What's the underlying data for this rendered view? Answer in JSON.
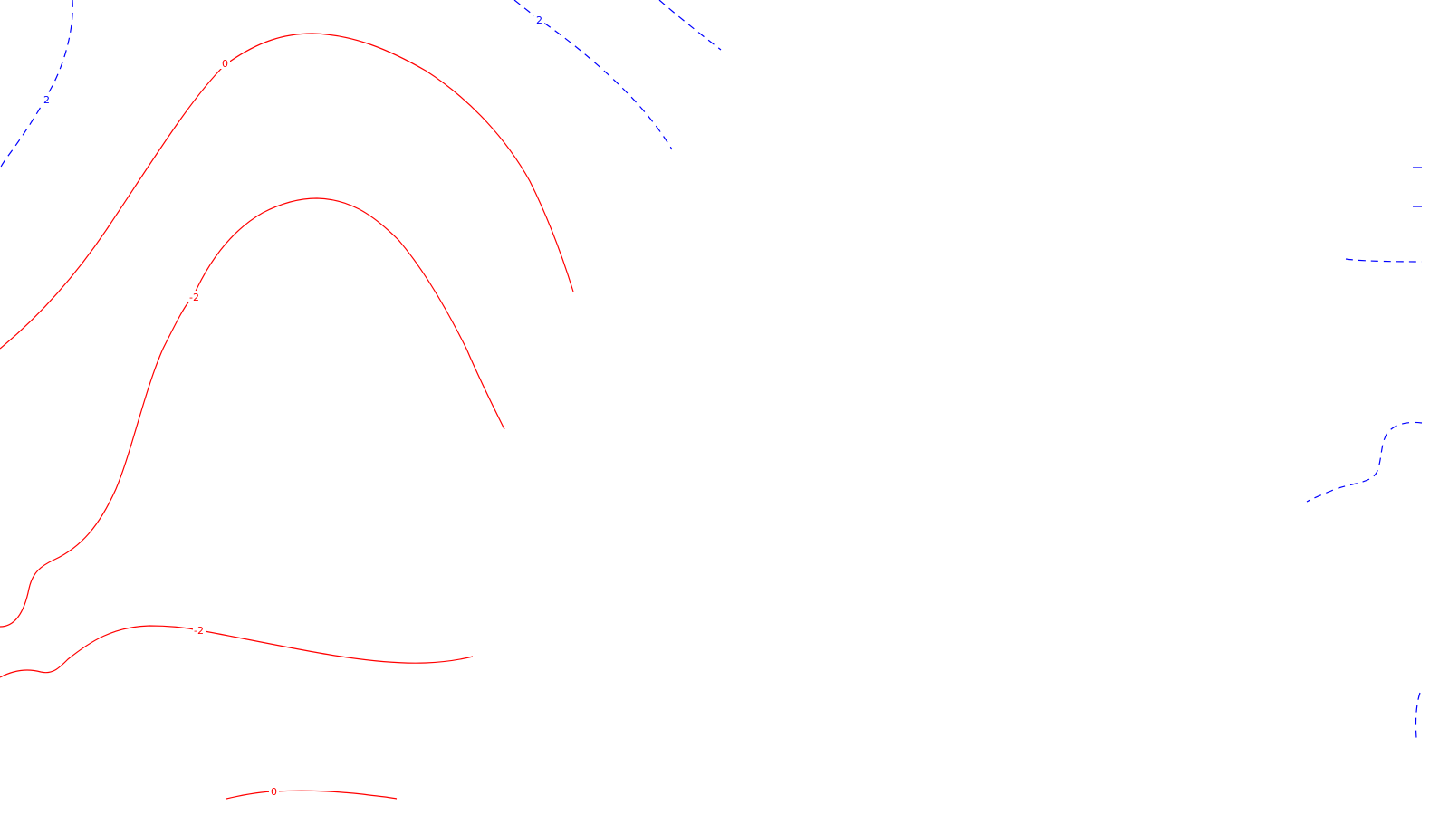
{
  "colors": {
    "background": "#ffffff",
    "negative_isoline": "#ff0000",
    "positive_isoline": "#0000ff"
  },
  "isolines": [
    {
      "id": "zero-upper",
      "level": "0",
      "style": "solid",
      "color": "negative_isoline"
    },
    {
      "id": "minus2-upper",
      "level": "-2",
      "style": "solid",
      "color": "negative_isoline"
    },
    {
      "id": "minus2-lower",
      "level": "-2",
      "style": "solid",
      "color": "negative_isoline"
    },
    {
      "id": "zero-bottom",
      "level": "0",
      "style": "solid",
      "color": "negative_isoline"
    },
    {
      "id": "plus2-top-left",
      "level": "2",
      "style": "dashed",
      "color": "positive_isoline"
    },
    {
      "id": "plus2-top-center",
      "level": "2",
      "style": "dashed",
      "color": "positive_isoline"
    },
    {
      "id": "plus2-top-right",
      "level": "",
      "style": "dashed",
      "color": "positive_isoline"
    },
    {
      "id": "positive-right-edge",
      "level": "",
      "style": "dashed",
      "color": "positive_isoline"
    }
  ],
  "labels": {
    "zero_upper": "0",
    "minus2_upper": "-2",
    "minus2_lower": "-2",
    "zero_bottom": "0",
    "plus2_top_left": "2",
    "plus2_top_center": "2"
  }
}
